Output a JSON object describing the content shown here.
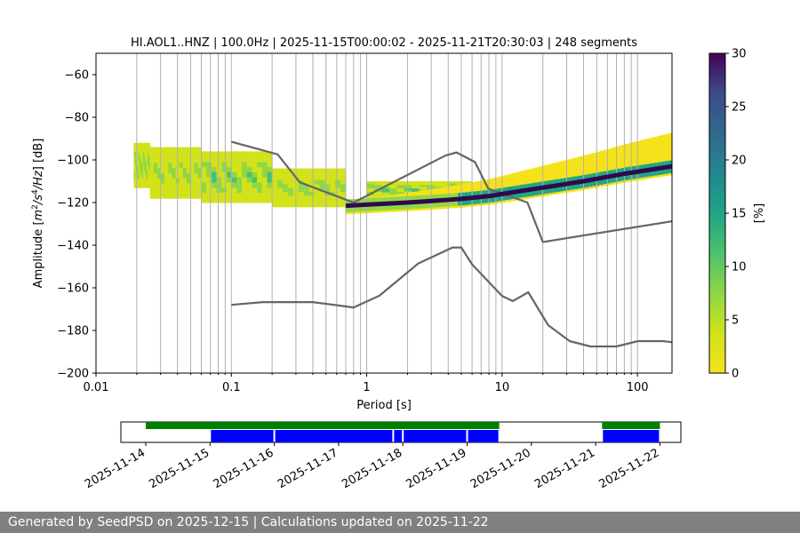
{
  "chart_data": {
    "type": "heatmap",
    "title": "HI.AOL1..HNZ | 100.0Hz | 2025-11-15T00:00:02 - 2025-11-21T20:30:03 | 248 segments",
    "xlabel": "Period [s]",
    "ylabel": "Amplitude [m²/s⁴/Hz] [dB]",
    "ylabel_parts": {
      "a": "Amplitude [",
      "m": "m",
      "two": "2",
      "s": "/s",
      "four": "4",
      "hz": "/Hz",
      "b": "] [dB]"
    },
    "x_scale": "log",
    "xlim": [
      0.01,
      180
    ],
    "ylim": [
      -200,
      -50
    ],
    "x_ticks": [
      0.01,
      0.1,
      1,
      10,
      100
    ],
    "x_tick_labels": [
      "0.01",
      "0.1",
      "1",
      "10",
      "100"
    ],
    "y_ticks": [
      -200,
      -180,
      -160,
      -140,
      -120,
      -100,
      -80,
      -60
    ],
    "y_tick_labels": [
      "−200",
      "−180",
      "−160",
      "−140",
      "−120",
      "−100",
      "−80",
      "−60"
    ],
    "period_grid_lines": [
      0.02,
      0.03,
      0.04,
      0.05,
      0.06,
      0.07,
      0.08,
      0.09,
      0.2,
      0.3,
      0.4,
      0.5,
      0.6,
      0.7,
      0.8,
      0.9,
      2,
      3,
      4,
      5,
      6,
      7,
      8,
      9,
      20,
      30,
      40,
      50,
      60,
      70,
      80,
      90
    ],
    "colorbar": {
      "label": "[%]",
      "min": 0,
      "max": 30,
      "ticks": [
        0,
        5,
        10,
        15,
        20,
        25,
        30
      ],
      "tick_labels": [
        "0",
        "5",
        "10",
        "15",
        "20",
        "25",
        "30"
      ],
      "colormap": "viridis"
    },
    "series": [
      {
        "name": "NHNM",
        "color": "#666666",
        "x": [
          0.1,
          0.22,
          0.32,
          0.8,
          3.8,
          4.6,
          6.3,
          7.9,
          15.4,
          20,
          180
        ],
        "y": [
          -91.5,
          -97.4,
          -110.5,
          -120,
          -98,
          -96.5,
          -101,
          -113.5,
          -120,
          -138.5,
          -128.8
        ]
      },
      {
        "name": "NLNM",
        "color": "#666666",
        "x": [
          0.1,
          0.17,
          0.4,
          0.8,
          1.24,
          2.4,
          4.3,
          5,
          6,
          10,
          12,
          15.6,
          21.9,
          31.6,
          45,
          70,
          101,
          154,
          180
        ],
        "y": [
          -168,
          -166.7,
          -166.7,
          -169.2,
          -163.7,
          -148.6,
          -141.1,
          -141.1,
          -149,
          -163.8,
          -166.2,
          -162.1,
          -177.5,
          -185,
          -187.5,
          -187.5,
          -185,
          -185,
          -185.5
        ]
      },
      {
        "name": "PSD mode",
        "color": "#2d0a4e",
        "x": [
          0.7,
          1,
          2,
          3,
          5,
          8,
          10,
          20,
          40,
          80,
          180
        ],
        "y": [
          -121.5,
          -121,
          -120,
          -119.3,
          -118.3,
          -117,
          -116,
          -113,
          -110,
          -106.5,
          -103
        ]
      }
    ],
    "density_regions": [
      {
        "x0": 0.019,
        "x1": 0.025,
        "y0": -113,
        "y1": -92,
        "level": 10
      },
      {
        "x0": 0.025,
        "x1": 0.06,
        "y0": -118,
        "y1": -94,
        "level": 8
      },
      {
        "x0": 0.06,
        "x1": 0.2,
        "y0": -120,
        "y1": -96,
        "level": 11
      },
      {
        "x0": 0.2,
        "x1": 0.7,
        "y0": -122,
        "y1": -104,
        "level": 9
      },
      {
        "x0": 1,
        "x1": 6,
        "y0": -118,
        "y1": -110,
        "level": 12
      }
    ],
    "timeline": {
      "x_start": "2025-11-14",
      "x_end": "2025-11-22",
      "date_labels": [
        "2025-11-14",
        "2025-11-15",
        "2025-11-16",
        "2025-11-17",
        "2025-11-18",
        "2025-11-19",
        "2025-11-20",
        "2025-11-21",
        "2025-11-22"
      ],
      "data_spans": [
        [
          0,
          5.5
        ],
        [
          7.1,
          8.0
        ]
      ],
      "data_color": "#008000",
      "segment_spans": [
        [
          1.0,
          2.0
        ],
        [
          2.0,
          3.85
        ],
        [
          3.85,
          4.0
        ],
        [
          4.0,
          5.0
        ],
        [
          5.0,
          5.5
        ],
        [
          7.1,
          8.0
        ]
      ],
      "segment_color": "#0000ff"
    }
  },
  "footer": {
    "text": "Generated by SeedPSD on 2025-12-15 | Calculations updated on 2025-11-22"
  }
}
